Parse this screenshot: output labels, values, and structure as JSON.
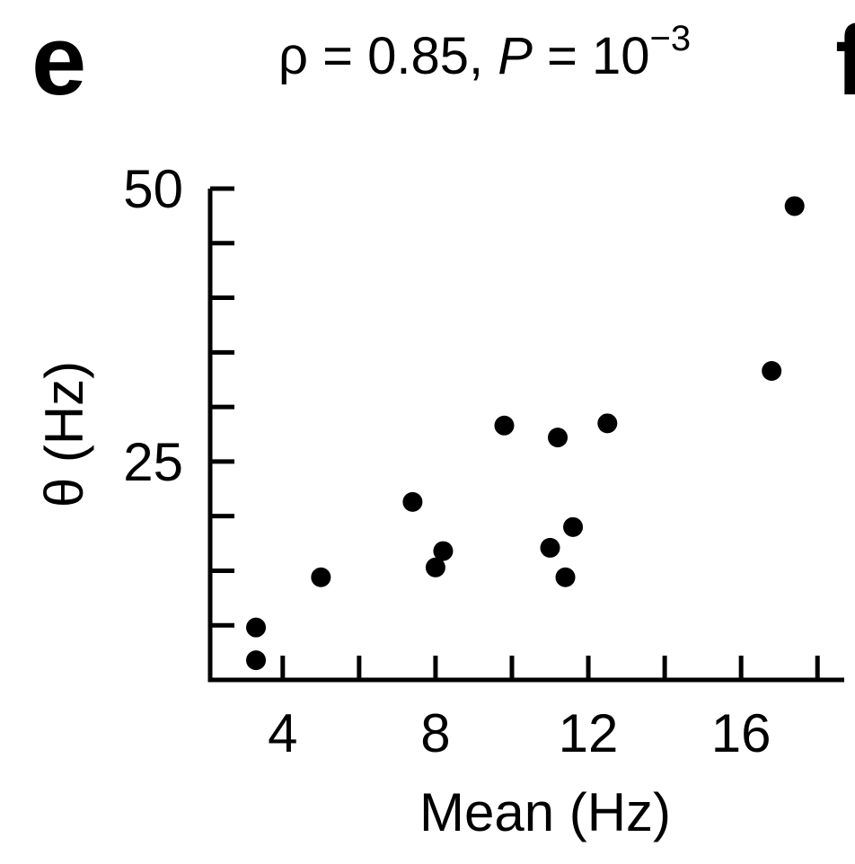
{
  "panel_label": "e",
  "next_panel_label": "f",
  "stats": {
    "rho_label": "ρ = 0.85, ",
    "p_label": "P",
    "p_eq": " = 10",
    "p_exp": "−3"
  },
  "chart_data": {
    "type": "scatter",
    "title": "ρ = 0.85, P = 10−3",
    "xlabel": "Mean (Hz)",
    "ylabel": "θ (Hz)",
    "xlim": [
      2.1,
      18.7
    ],
    "ylim": [
      5,
      50
    ],
    "xticks": [
      4,
      6,
      8,
      10,
      12,
      14,
      16,
      18
    ],
    "xtick_labels": [
      "4",
      "",
      "8",
      "",
      "12",
      "",
      "16",
      ""
    ],
    "yticks": [
      5,
      10,
      15,
      20,
      25,
      30,
      35,
      40,
      45,
      50
    ],
    "ytick_labels": [
      "",
      "",
      "",
      "",
      "25",
      "",
      "",
      "",
      "",
      "50"
    ],
    "marker_color": "#000000",
    "points": [
      {
        "x": 17.4,
        "y": 48.4
      },
      {
        "x": 16.8,
        "y": 33.3
      },
      {
        "x": 12.5,
        "y": 28.5
      },
      {
        "x": 9.8,
        "y": 28.3
      },
      {
        "x": 11.2,
        "y": 27.2
      },
      {
        "x": 7.4,
        "y": 21.3
      },
      {
        "x": 11.6,
        "y": 19.0
      },
      {
        "x": 11.0,
        "y": 17.1
      },
      {
        "x": 8.2,
        "y": 16.8
      },
      {
        "x": 8.0,
        "y": 15.3
      },
      {
        "x": 5.0,
        "y": 14.4
      },
      {
        "x": 11.4,
        "y": 14.4
      },
      {
        "x": 3.3,
        "y": 9.8
      },
      {
        "x": 3.3,
        "y": 6.8
      }
    ]
  }
}
